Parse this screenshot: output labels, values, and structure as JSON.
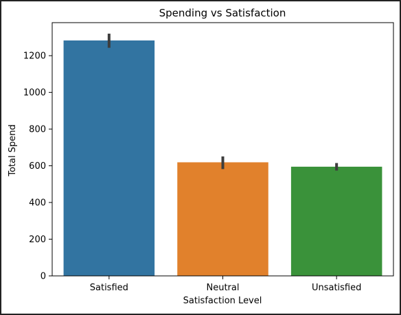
{
  "chart_data": {
    "type": "bar",
    "title": "Spending vs Satisfaction",
    "xlabel": "Satisfaction Level",
    "ylabel": "Total Spend",
    "categories": [
      "Satisfied",
      "Neutral",
      "Unsatisfied"
    ],
    "values": [
      1283,
      619,
      595
    ],
    "error_bars": [
      {
        "low": 1243,
        "high": 1320
      },
      {
        "low": 582,
        "high": 651
      },
      {
        "low": 574,
        "high": 615
      }
    ],
    "colors": [
      "#3274a1",
      "#e1812c",
      "#3a923a"
    ],
    "ylim": [
      0,
      1380
    ],
    "yticks": [
      0,
      200,
      400,
      600,
      800,
      1000,
      1200
    ],
    "grid": false
  }
}
